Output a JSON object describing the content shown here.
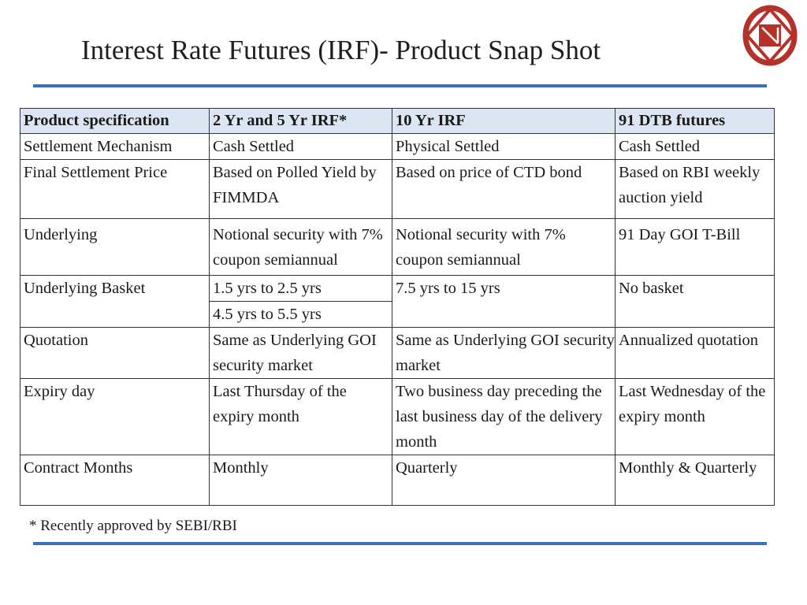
{
  "slide": {
    "title": "Interest Rate Futures (IRF)- Product Snap Shot",
    "footnote": "* Recently approved by SEBI/RBI",
    "accent_color": "#3a6fc4",
    "header_fill": "#dce6f2",
    "logo": {
      "icon": "institution-logo-icon",
      "color": "#b5322a"
    }
  },
  "table": {
    "headers": [
      "Product specification",
      "2 Yr and 5 Yr IRF*",
      "10 Yr IRF",
      "91 DTB futures"
    ],
    "rows": [
      {
        "label": "Settlement Mechanism",
        "c1": "Cash Settled",
        "c2": "Physical Settled",
        "c3": "Cash Settled"
      },
      {
        "label": "Final Settlement Price",
        "c1": "Based on Polled Yield by FIMMDA",
        "c2": "Based on price of CTD bond",
        "c3": "Based on RBI weekly auction yield"
      },
      {
        "label": "Underlying",
        "c1": "Notional security with 7% coupon semiannual",
        "c2": "Notional security with 7% coupon semiannual",
        "c3": "91 Day GOI T-Bill"
      },
      {
        "label": "Underlying Basket",
        "c1a": "1.5 yrs to 2.5 yrs",
        "c1b": "4.5 yrs to 5.5 yrs",
        "c2": "7.5 yrs to 15 yrs",
        "c3": "No basket"
      },
      {
        "label": "Quotation",
        "c1": "Same as Underlying GOI security market",
        "c2": "Same as Underlying GOI security market",
        "c3": "Annualized quotation"
      },
      {
        "label": "Expiry day",
        "c1": "Last Thursday of the expiry month",
        "c2": "Two business day preceding the last business day of the delivery month",
        "c3": "Last Wednesday of the expiry month"
      },
      {
        "label": "Contract Months",
        "c1": "Monthly",
        "c2": "Quarterly",
        "c3": "Monthly & Quarterly"
      }
    ]
  }
}
